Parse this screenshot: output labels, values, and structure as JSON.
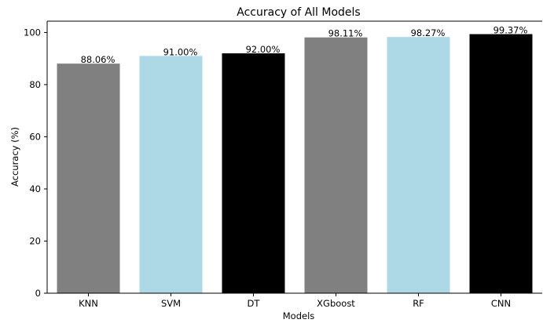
{
  "chart_data": {
    "type": "bar",
    "title": "Accuracy of All Models",
    "xlabel": "Models",
    "ylabel": "Accuracy (%)",
    "categories": [
      "KNN",
      "SVM",
      "DT",
      "XGboost",
      "RF",
      "CNN"
    ],
    "values": [
      88.06,
      91.0,
      92.0,
      98.11,
      98.27,
      99.37
    ],
    "data_labels": [
      "88.06%",
      "91.00%",
      "92.00%",
      "98.11%",
      "98.27%",
      "99.37%"
    ],
    "bar_colors": [
      "#808080",
      "#add8e6",
      "#000000",
      "#808080",
      "#add8e6",
      "#000000"
    ],
    "ylim": [
      0,
      104.34
    ],
    "yticks": [
      0,
      20,
      40,
      60,
      80,
      100
    ],
    "ytick_labels": [
      "0",
      "20",
      "40",
      "60",
      "80",
      "100"
    ],
    "grid": false,
    "legend": "none"
  }
}
